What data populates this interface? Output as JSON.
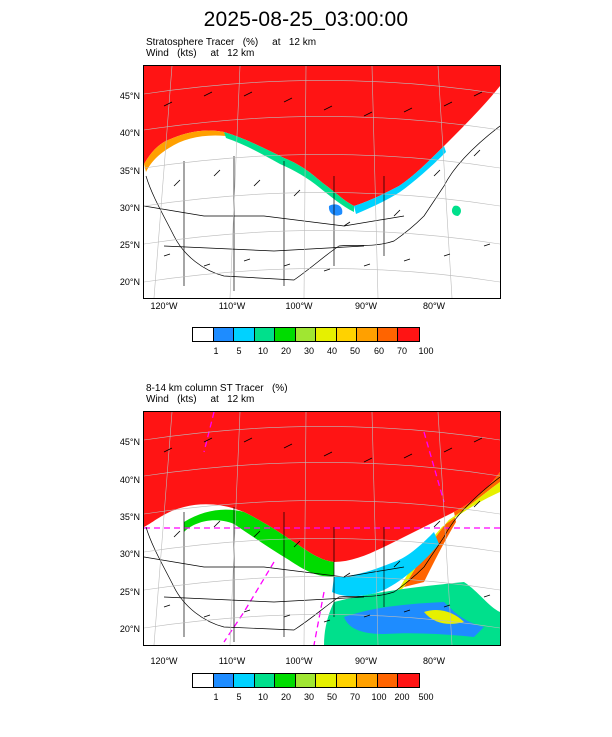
{
  "title": "2025-08-25_03:00:00",
  "panels": [
    {
      "id": "top",
      "subtitle_line1": "Stratosphere Tracer   (%)     at   12 km",
      "subtitle_line2": "Wind   (kts)     at   12 km",
      "lat_labels": [
        "45°N",
        "40°N",
        "35°N",
        "30°N",
        "25°N",
        "20°N"
      ],
      "lon_labels": [
        "120°W",
        "110°W",
        "100°W",
        "90°W",
        "80°W"
      ],
      "colorbar": {
        "colors": [
          "#ffffff",
          "#1e8cff",
          "#00d2ff",
          "#00e08c",
          "#00dc00",
          "#a0e632",
          "#e6f000",
          "#ffd200",
          "#ffa000",
          "#ff6400",
          "#ff1414"
        ],
        "labels": [
          "1",
          "5",
          "10",
          "20",
          "30",
          "40",
          "50",
          "60",
          "70",
          "100"
        ]
      }
    },
    {
      "id": "bottom",
      "subtitle_line1": "8-14 km column ST Tracer   (%)",
      "subtitle_line2": "Wind   (kts)     at   12 km",
      "lat_labels": [
        "45°N",
        "40°N",
        "35°N",
        "30°N",
        "25°N",
        "20°N"
      ],
      "lon_labels": [
        "120°W",
        "110°W",
        "100°W",
        "90°W",
        "80°W"
      ],
      "colorbar": {
        "colors": [
          "#ffffff",
          "#1e8cff",
          "#00d2ff",
          "#00e08c",
          "#00dc00",
          "#a0e632",
          "#e6f000",
          "#ffd200",
          "#ffa000",
          "#ff6400",
          "#ff1414"
        ],
        "labels": [
          "1",
          "5",
          "10",
          "20",
          "30",
          "50",
          "70",
          "100",
          "200",
          "500"
        ]
      }
    }
  ]
}
